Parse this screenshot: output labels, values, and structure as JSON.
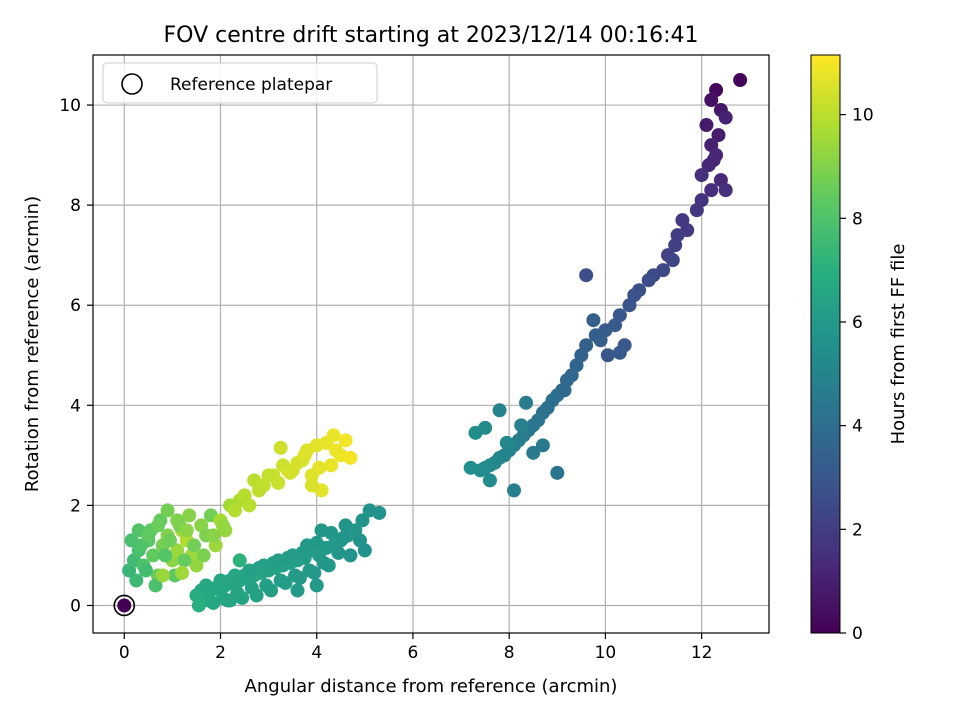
{
  "chart_data": {
    "type": "scatter",
    "title": "FOV centre drift starting at 2023/12/14 00:16:41",
    "xlabel": "Angular distance from reference (arcmin)",
    "ylabel": "Rotation from reference (arcmin)",
    "xlim": [
      -0.65,
      13.4
    ],
    "ylim": [
      -0.55,
      11.0
    ],
    "xticks": [
      "0",
      "2",
      "4",
      "6",
      "8",
      "10",
      "12"
    ],
    "xtick_values": [
      0,
      2,
      4,
      6,
      8,
      10,
      12
    ],
    "yticks": [
      "0",
      "2",
      "4",
      "6",
      "8",
      "10"
    ],
    "ytick_values": [
      0,
      2,
      4,
      6,
      8,
      10
    ],
    "grid": true,
    "legend": {
      "position": "top-left",
      "label": "Reference platepar"
    },
    "reference_point": {
      "x": 0,
      "y": 0
    },
    "colorbar": {
      "label": "Hours from first FF file",
      "range": [
        0,
        11.15
      ],
      "ticks": [
        "0",
        "2",
        "4",
        "6",
        "8",
        "10"
      ],
      "tick_values": [
        0,
        2,
        4,
        6,
        8,
        10
      ],
      "colormap": "viridis"
    },
    "series": [
      {
        "x": [
          0,
          12.8,
          12.3,
          12.2,
          12.4,
          12.1,
          12.35,
          12.2,
          12.5,
          12.25,
          12.3,
          12.15,
          12.4,
          12.2,
          12.0,
          12.5,
          12.0,
          11.9,
          11.6,
          11.7,
          11.5,
          11.45,
          11.3,
          11.4,
          11.2,
          11.0,
          10.9,
          10.7,
          10.6,
          10.5,
          10.3,
          10.2,
          10.0,
          9.9,
          10.4,
          10.3,
          9.8,
          9.6,
          9.5,
          9.4,
          9.3,
          9.2,
          9.1,
          9.0,
          8.9,
          8.8,
          8.7,
          8.6,
          8.5,
          8.4,
          8.3,
          8.2,
          8.1,
          8.0,
          7.9,
          7.8,
          7.7,
          7.6,
          7.5,
          7.4,
          7.3,
          7.2,
          7.5,
          7.8,
          8.1,
          8.5,
          8.7,
          9.0,
          7.6,
          7.95,
          8.25,
          8.35,
          9.6,
          10.05,
          9.15,
          9.75,
          5.3,
          5.1,
          4.95,
          4.8,
          4.65,
          4.5,
          4.35,
          4.2,
          4.05,
          3.9,
          3.75,
          3.6,
          3.45,
          3.3,
          3.15,
          3.0,
          2.85,
          2.7,
          2.55,
          2.4,
          2.25,
          2.1,
          1.95,
          1.8,
          1.65,
          1.5,
          4.6,
          4.3,
          4.0,
          3.7,
          3.4,
          3.1,
          2.8,
          2.5,
          2.2,
          1.9,
          1.6,
          4.9,
          4.45,
          4.15,
          3.85,
          3.55,
          3.25,
          2.95,
          2.65,
          2.35,
          2.05,
          1.75,
          4.7,
          4.25,
          3.95,
          3.65,
          3.35,
          3.05,
          2.75,
          2.45,
          2.15,
          1.85,
          5.0,
          4.55,
          4.1,
          3.8,
          3.5,
          3.2,
          2.9,
          2.6,
          2.3,
          2.0,
          1.7,
          4.0,
          3.6,
          2.2,
          1.55,
          2.4,
          0.1,
          0.2,
          0.3,
          0.4,
          0.5,
          0.6,
          0.7,
          0.8,
          0.9,
          1.0,
          1.1,
          1.2,
          1.3,
          1.4,
          1.5,
          1.6,
          1.7,
          1.8,
          1.9,
          2.0,
          2.1,
          2.2,
          2.3,
          2.4,
          0.25,
          0.45,
          0.65,
          0.85,
          1.05,
          1.25,
          1.45,
          1.65,
          1.85,
          2.05,
          0.35,
          0.55,
          0.75,
          0.95,
          1.15,
          1.35,
          0.15,
          0.3,
          0.5,
          0.7,
          0.9,
          1.1,
          1.3,
          0.8,
          1.2,
          2.5,
          2.7,
          2.9,
          3.1,
          3.3,
          3.5,
          3.7,
          3.9,
          4.1,
          4.3,
          4.5,
          4.7,
          2.6,
          2.8,
          3.0,
          3.2,
          3.4,
          3.6,
          3.8,
          4.0,
          4.2,
          4.4,
          4.6,
          3.75,
          4.05,
          4.35,
          3.25,
          3.45,
          3.9
        ],
        "y": [
          0,
          10.5,
          10.3,
          10.1,
          9.9,
          9.6,
          9.4,
          9.2,
          9.75,
          8.9,
          9.0,
          8.8,
          8.5,
          8.3,
          8.6,
          8.3,
          8.1,
          7.9,
          7.7,
          7.5,
          7.4,
          7.2,
          7.0,
          6.9,
          6.7,
          6.6,
          6.5,
          6.3,
          6.2,
          6.0,
          5.8,
          5.6,
          5.5,
          5.3,
          5.2,
          5.05,
          5.4,
          5.2,
          5.0,
          4.8,
          4.6,
          4.5,
          4.3,
          4.2,
          4.1,
          3.95,
          3.85,
          3.7,
          3.6,
          3.5,
          3.4,
          3.3,
          3.2,
          3.1,
          3.0,
          2.95,
          2.85,
          2.8,
          2.75,
          2.7,
          3.45,
          2.75,
          3.55,
          3.9,
          2.3,
          3.05,
          3.2,
          2.65,
          2.5,
          3.25,
          3.6,
          4.05,
          6.6,
          5.0,
          4.3,
          5.7,
          1.85,
          1.9,
          1.7,
          1.5,
          1.4,
          1.3,
          1.2,
          1.15,
          1.0,
          1.1,
          0.95,
          0.9,
          0.85,
          0.8,
          0.75,
          0.7,
          0.65,
          0.6,
          0.55,
          0.5,
          0.45,
          0.4,
          0.35,
          0.3,
          0.25,
          0.2,
          1.6,
          1.45,
          1.25,
          1.05,
          0.95,
          0.85,
          0.75,
          0.6,
          0.5,
          0.35,
          0.3,
          1.3,
          1.05,
          0.85,
          0.7,
          0.6,
          0.5,
          0.4,
          0.35,
          0.25,
          0.15,
          0.1,
          1.0,
          0.8,
          0.65,
          0.55,
          0.45,
          0.3,
          0.2,
          0.15,
          0.1,
          0.05,
          1.1,
          1.35,
          1.5,
          1.2,
          1.0,
          0.9,
          0.8,
          0.7,
          0.6,
          0.5,
          0.4,
          0.4,
          0.3,
          0.1,
          0.0,
          0.9,
          0.7,
          0.9,
          1.1,
          0.8,
          1.3,
          1.0,
          0.6,
          1.2,
          1.4,
          0.9,
          1.1,
          1.5,
          1.3,
          1.0,
          0.8,
          1.6,
          1.4,
          1.8,
          1.2,
          1.7,
          1.5,
          2.0,
          1.9,
          2.1,
          0.5,
          0.7,
          0.4,
          1.0,
          0.6,
          0.9,
          1.2,
          1.0,
          1.4,
          1.6,
          1.2,
          1.5,
          1.7,
          1.3,
          1.6,
          1.8,
          1.3,
          1.5,
          1.4,
          1.6,
          1.9,
          1.7,
          1.5,
          0.6,
          0.65,
          2.2,
          2.5,
          2.4,
          2.6,
          2.8,
          2.7,
          2.9,
          2.6,
          2.3,
          2.8,
          3.0,
          2.95,
          2.0,
          2.3,
          2.6,
          2.45,
          2.7,
          2.85,
          3.1,
          3.2,
          3.25,
          3.1,
          3.3,
          3.0,
          2.75,
          3.4,
          3.15,
          2.65,
          2.4
        ],
        "hours": [
          0,
          0.1,
          0.3,
          0.5,
          0.7,
          0.8,
          0.9,
          1.0,
          1.1,
          1.15,
          1.2,
          1.25,
          1.3,
          1.4,
          1.5,
          1.55,
          1.6,
          1.7,
          1.8,
          1.9,
          2.0,
          2.1,
          2.2,
          2.3,
          2.4,
          2.5,
          2.6,
          2.7,
          2.8,
          2.9,
          3.0,
          3.1,
          3.2,
          3.3,
          3.0,
          3.1,
          3.3,
          3.4,
          3.5,
          3.6,
          3.7,
          3.8,
          3.9,
          4.0,
          4.05,
          4.1,
          4.2,
          4.3,
          4.4,
          4.5,
          4.6,
          4.7,
          4.8,
          4.9,
          5.0,
          5.05,
          5.1,
          5.2,
          5.3,
          5.4,
          5.45,
          5.5,
          5.25,
          4.95,
          4.75,
          4.55,
          4.45,
          4.25,
          5.35,
          5.15,
          4.85,
          4.65,
          2.6,
          3.05,
          3.85,
          3.35,
          5.6,
          5.7,
          5.75,
          5.8,
          5.85,
          5.9,
          5.95,
          6.0,
          6.05,
          6.1,
          6.15,
          6.2,
          6.25,
          6.3,
          6.35,
          6.4,
          6.45,
          6.5,
          6.55,
          6.6,
          6.65,
          6.7,
          6.75,
          6.8,
          6.85,
          6.9,
          5.75,
          5.85,
          5.95,
          6.05,
          6.15,
          6.25,
          6.35,
          6.45,
          6.55,
          6.65,
          6.75,
          5.65,
          5.8,
          5.9,
          6.0,
          6.1,
          6.2,
          6.3,
          6.4,
          6.5,
          6.6,
          6.7,
          5.7,
          5.85,
          5.95,
          6.05,
          6.15,
          6.25,
          6.35,
          6.45,
          6.55,
          6.65,
          5.6,
          5.75,
          5.9,
          6.0,
          6.1,
          6.2,
          6.3,
          6.4,
          6.5,
          6.6,
          6.7,
          5.95,
          6.05,
          6.55,
          7.0,
          7.1,
          7.4,
          7.6,
          7.8,
          8.0,
          8.2,
          8.4,
          8.6,
          8.8,
          9.0,
          9.2,
          9.4,
          9.6,
          9.8,
          9.5,
          9.3,
          9.1,
          8.9,
          8.7,
          9.45,
          9.65,
          9.35,
          9.55,
          9.85,
          9.75,
          7.5,
          7.7,
          7.9,
          8.1,
          8.3,
          8.5,
          8.7,
          8.9,
          9.1,
          9.3,
          8.0,
          8.25,
          8.45,
          8.65,
          8.85,
          9.05,
          7.85,
          8.05,
          8.35,
          8.55,
          8.75,
          8.95,
          9.15,
          9.4,
          9.5,
          9.9,
          10.0,
          10.1,
          10.2,
          10.3,
          10.4,
          10.5,
          10.6,
          10.7,
          10.8,
          10.9,
          11.0,
          9.95,
          10.05,
          10.15,
          10.25,
          10.35,
          10.45,
          10.55,
          10.65,
          10.75,
          10.85,
          10.95,
          10.6,
          10.7,
          10.8,
          10.3,
          10.4,
          10.5
        ]
      }
    ]
  }
}
